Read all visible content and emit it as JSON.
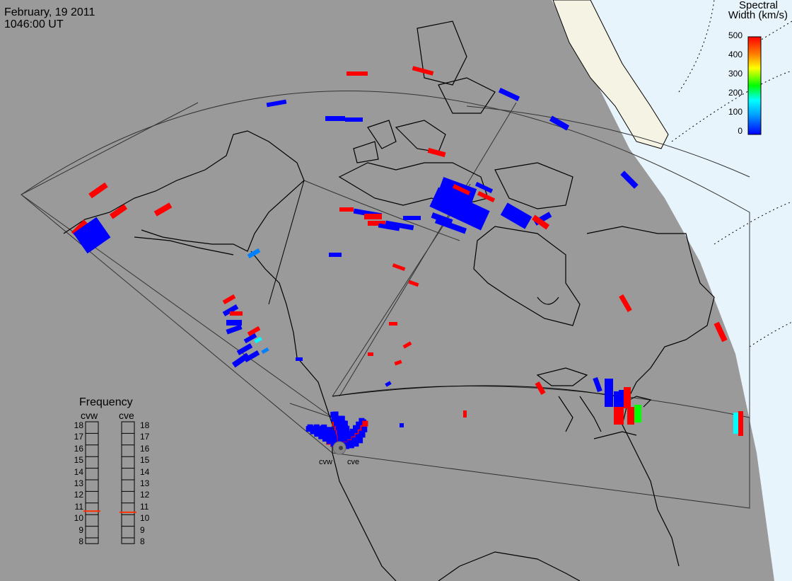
{
  "header": {
    "date": "February, 19 2011",
    "time": "1046:00 UT"
  },
  "colorbar": {
    "title_line1": "Spectral",
    "title_line2": "Width (km/s)",
    "ticks": [
      "500",
      "400",
      "300",
      "200",
      "100",
      "0"
    ],
    "range": [
      0,
      500
    ],
    "colors": [
      "#0000ff",
      "#00a0ff",
      "#00ffff",
      "#00ff00",
      "#ffff00",
      "#ff8000",
      "#ff0000"
    ]
  },
  "frequency": {
    "title": "Frequency",
    "columns": [
      {
        "name": "cvw",
        "value_mhz": 10.8
      },
      {
        "name": "cve",
        "value_mhz": 10.7
      }
    ],
    "ticks": [
      "18",
      "17",
      "16",
      "15",
      "14",
      "13",
      "12",
      "11",
      "10",
      "9",
      "8"
    ],
    "range": [
      8,
      18
    ],
    "marker_color": "#ff3000"
  },
  "radars": [
    {
      "name": "cvw"
    },
    {
      "name": "cve"
    }
  ],
  "colors": {
    "background": "#9a9a9a",
    "daylight": "#e8f4fc",
    "ice": "#f5f3e3",
    "coast": "#000000",
    "fov": "#333333"
  }
}
